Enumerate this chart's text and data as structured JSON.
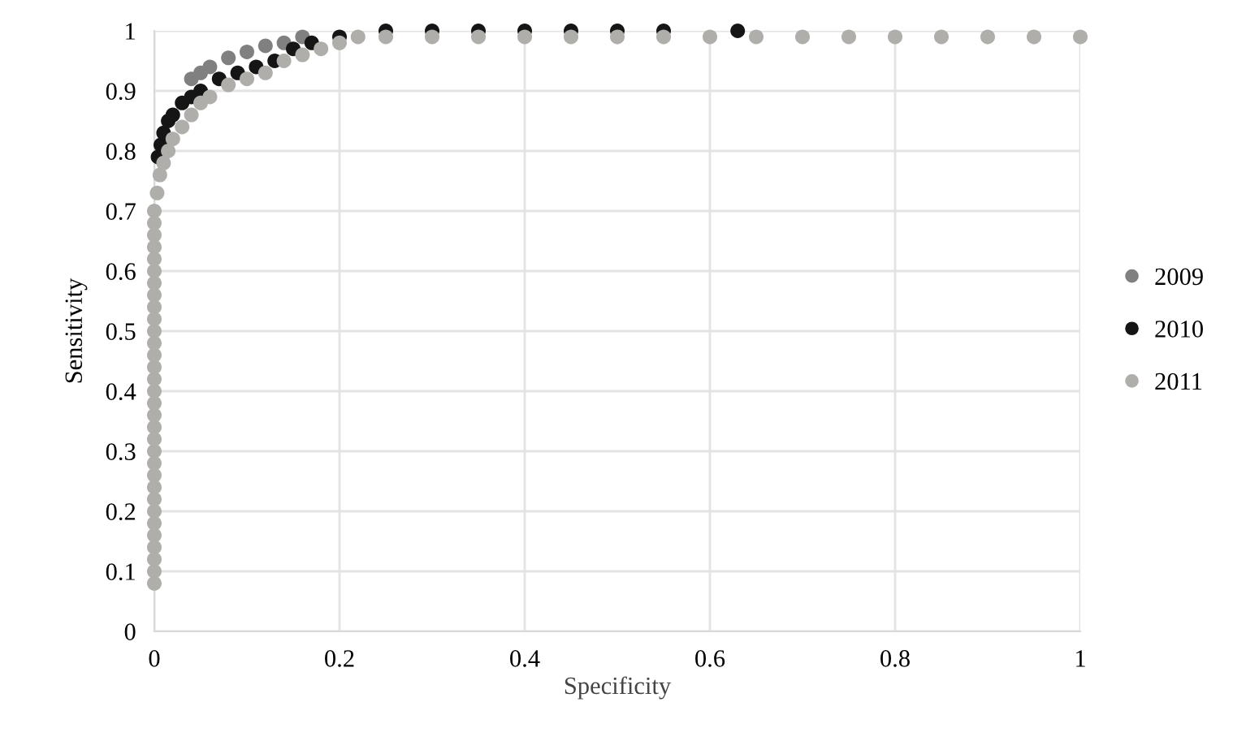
{
  "chart_data": {
    "type": "scatter",
    "xlabel": "Specificity",
    "ylabel": "Sensitivity",
    "xlim": [
      0,
      1
    ],
    "ylim": [
      0,
      1
    ],
    "xticks": [
      0,
      0.2,
      0.4,
      0.6,
      0.8,
      1
    ],
    "yticks": [
      0,
      0.1,
      0.2,
      0.3,
      0.4,
      0.5,
      0.6,
      0.7,
      0.8,
      0.9,
      1
    ],
    "grid": true,
    "legend": "right",
    "marker": "circle",
    "series": [
      {
        "name": "2009",
        "color": "#808080",
        "x": [
          0.04,
          0.05,
          0.06,
          0.08,
          0.1,
          0.12,
          0.14,
          0.16
        ],
        "values": [
          0.92,
          0.93,
          0.94,
          0.955,
          0.965,
          0.975,
          0.98,
          0.99
        ]
      },
      {
        "name": "2010",
        "color": "#151515",
        "x": [
          0.004,
          0.007,
          0.01,
          0.015,
          0.02,
          0.03,
          0.04,
          0.05,
          0.07,
          0.09,
          0.11,
          0.13,
          0.15,
          0.17,
          0.2,
          0.25,
          0.3,
          0.35,
          0.4,
          0.45,
          0.5,
          0.55,
          0.63
        ],
        "values": [
          0.79,
          0.81,
          0.83,
          0.85,
          0.86,
          0.88,
          0.89,
          0.9,
          0.92,
          0.93,
          0.94,
          0.95,
          0.97,
          0.98,
          0.99,
          1,
          1,
          1,
          1,
          1,
          1,
          1,
          1
        ]
      },
      {
        "name": "2011",
        "color": "#b0aeaa",
        "x": [
          0,
          0,
          0,
          0,
          0,
          0,
          0,
          0,
          0,
          0,
          0,
          0,
          0,
          0,
          0,
          0,
          0,
          0,
          0,
          0,
          0,
          0,
          0,
          0,
          0,
          0,
          0,
          0,
          0,
          0,
          0,
          0,
          0.003,
          0.006,
          0.01,
          0.015,
          0.02,
          0.03,
          0.04,
          0.05,
          0.06,
          0.08,
          0.1,
          0.12,
          0.14,
          0.16,
          0.18,
          0.2,
          0.22,
          0.25,
          0.3,
          0.35,
          0.4,
          0.45,
          0.5,
          0.55,
          0.6,
          0.65,
          0.7,
          0.75,
          0.8,
          0.85,
          0.9,
          0.95,
          1
        ],
        "values": [
          0.08,
          0.1,
          0.12,
          0.14,
          0.16,
          0.18,
          0.2,
          0.22,
          0.24,
          0.26,
          0.28,
          0.3,
          0.32,
          0.34,
          0.36,
          0.38,
          0.4,
          0.42,
          0.44,
          0.46,
          0.48,
          0.5,
          0.52,
          0.54,
          0.56,
          0.58,
          0.6,
          0.62,
          0.64,
          0.66,
          0.68,
          0.7,
          0.73,
          0.76,
          0.78,
          0.8,
          0.82,
          0.84,
          0.86,
          0.88,
          0.89,
          0.91,
          0.92,
          0.93,
          0.95,
          0.96,
          0.97,
          0.98,
          0.99,
          0.99,
          0.99,
          0.99,
          0.99,
          0.99,
          0.99,
          0.99,
          0.99,
          0.99,
          0.99,
          0.99,
          0.99,
          0.99,
          0.99,
          0.99,
          0.99
        ]
      }
    ]
  }
}
